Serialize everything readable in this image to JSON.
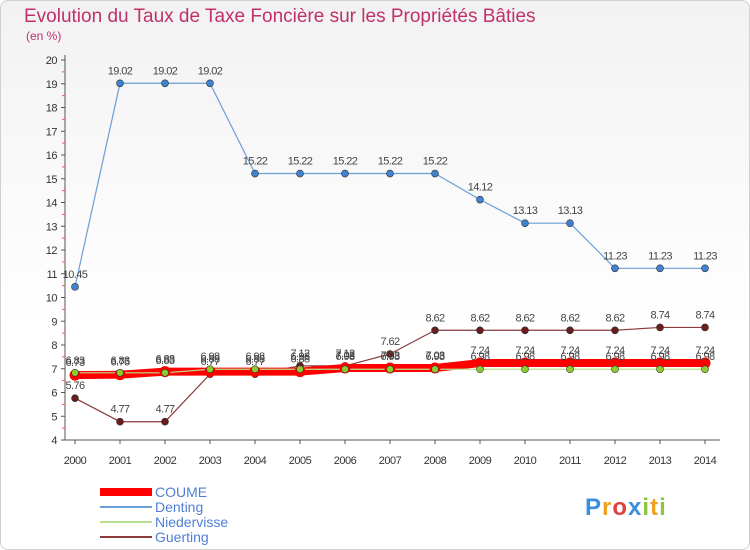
{
  "chart_data": {
    "type": "line",
    "title": "Evolution du Taux de Taxe Foncière sur les Propriétés Bâties",
    "subtitle": "(en %)",
    "xlabel": "",
    "ylabel": "",
    "ylim": [
      4,
      20
    ],
    "yticks": [
      "4",
      "5",
      "6",
      "7",
      "8",
      "9",
      "10",
      "11",
      "12",
      "13",
      "14",
      "15",
      "16",
      "17",
      "18",
      "19",
      "20"
    ],
    "categories": [
      "2000",
      "2001",
      "2002",
      "2003",
      "2004",
      "2005",
      "2006",
      "2007",
      "2008",
      "2009",
      "2010",
      "2011",
      "2012",
      "2013",
      "2014"
    ],
    "series": [
      {
        "name": "COUME",
        "color": "#ff0000",
        "marker": "#ff0000",
        "values": [
          6.73,
          6.75,
          6.88,
          6.88,
          6.88,
          6.88,
          7.03,
          7.03,
          7.03,
          7.24,
          7.24,
          7.24,
          7.24,
          7.24,
          7.24
        ],
        "labels": [
          "6.73",
          "6.75",
          "6.88",
          "6.88",
          "6.88",
          "6.88",
          "7.03",
          "7.03",
          "7.03",
          "7.24",
          "7.24",
          "7.24",
          "7.24",
          "7.24",
          "7.24"
        ]
      },
      {
        "name": "Denting",
        "color": "#6a9ed8",
        "marker": "#3f82cf",
        "values": [
          10.45,
          19.02,
          19.02,
          19.02,
          15.22,
          15.22,
          15.22,
          15.22,
          15.22,
          14.12,
          13.13,
          13.13,
          11.23,
          11.23,
          11.23
        ],
        "labels": [
          "10.45",
          "19.02",
          "19.02",
          "19.02",
          "15.22",
          "15.22",
          "15.22",
          "15.22",
          "15.22",
          "14.12",
          "13.13",
          "13.13",
          "11.23",
          "11.23",
          "11.23"
        ]
      },
      {
        "name": "Niedervisse",
        "color": "#b9e08a",
        "marker": "#8ccc2e",
        "values": [
          6.83,
          6.83,
          6.83,
          6.98,
          6.98,
          6.98,
          6.98,
          6.98,
          6.98,
          6.98,
          6.98,
          6.98,
          6.98,
          6.98,
          6.98
        ],
        "labels": [
          "6.83",
          "6.83",
          "6.83",
          "6.98",
          "6.98",
          "6.98",
          "6.98",
          "6.98",
          "6.98",
          "6.98",
          "6.98",
          "6.98",
          "6.98",
          "6.98",
          "6.98"
        ]
      },
      {
        "name": "Guerting",
        "color": "#8c3b3b",
        "marker": "#6b1c1c",
        "values": [
          5.76,
          4.77,
          4.77,
          6.77,
          6.77,
          7.12,
          7.12,
          7.62,
          8.62,
          8.62,
          8.62,
          8.62,
          8.62,
          8.74,
          8.74
        ],
        "labels": [
          "5.76",
          "4.77",
          "4.77",
          "6.77",
          "6.77",
          "7.12",
          "7.12",
          "7.62",
          "8.62",
          "8.62",
          "8.62",
          "8.62",
          "8.62",
          "8.74",
          "8.74"
        ]
      }
    ],
    "legend_position": "bottom-left",
    "grid": false
  },
  "logo": {
    "letters": [
      "P",
      "r",
      "o",
      "x",
      "i",
      "t",
      "i"
    ],
    "colors": [
      "#3a8fdc",
      "#f0a020",
      "#e04040",
      "#3a8fdc",
      "#8cc63f",
      "#f0a020",
      "#8cc63f"
    ]
  }
}
